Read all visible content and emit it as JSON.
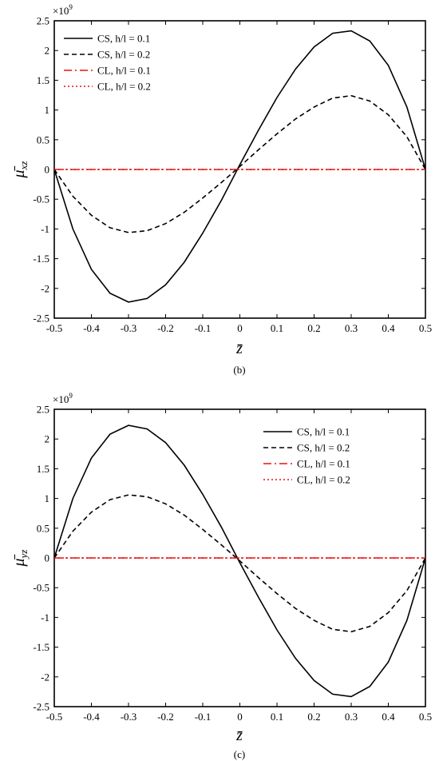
{
  "chart_data": [
    {
      "type": "line",
      "panel_label": "(b)",
      "ylabel": "μ̄",
      "ylabel_sub": "xz",
      "xlabel": "z̄",
      "exponent_base": "×10",
      "exponent_power": "9",
      "xlim": [
        -0.5,
        0.5
      ],
      "ylim": [
        -2.5,
        2.5
      ],
      "xticks": [
        "-0.5",
        "-0.4",
        "-0.3",
        "-0.2",
        "-0.1",
        "0",
        "0.1",
        "0.2",
        "0.3",
        "0.4",
        "0.5"
      ],
      "yticks": [
        "2.5",
        "2",
        "1.5",
        "1",
        "0.5",
        "0",
        "-0.5",
        "-1",
        "-1.5",
        "-2",
        "-2.5"
      ],
      "legend_position": "top-left",
      "series": [
        {
          "name": "CS, h/l = 0.1",
          "color": "#000000",
          "dash": "solid",
          "x": [
            -0.5,
            -0.45,
            -0.4,
            -0.35,
            -0.3,
            -0.25,
            -0.2,
            -0.15,
            -0.1,
            -0.05,
            0,
            0.05,
            0.1,
            0.15,
            0.2,
            0.25,
            0.3,
            0.35,
            0.4,
            0.45,
            0.5
          ],
          "y": [
            0,
            -1.0,
            -1.68,
            -2.08,
            -2.23,
            -2.17,
            -1.94,
            -1.56,
            -1.07,
            -0.52,
            0.08,
            0.66,
            1.21,
            1.69,
            2.06,
            2.29,
            2.33,
            2.16,
            1.75,
            1.05,
            0
          ]
        },
        {
          "name": "CS, h/l = 0.2",
          "color": "#000000",
          "dash": "dashed",
          "x": [
            -0.5,
            -0.45,
            -0.4,
            -0.35,
            -0.3,
            -0.25,
            -0.2,
            -0.15,
            -0.1,
            -0.05,
            0,
            0.05,
            0.1,
            0.15,
            0.2,
            0.25,
            0.3,
            0.35,
            0.4,
            0.45,
            0.5
          ],
          "y": [
            0,
            -0.45,
            -0.77,
            -0.98,
            -1.06,
            -1.03,
            -0.91,
            -0.72,
            -0.48,
            -0.22,
            0.05,
            0.33,
            0.6,
            0.85,
            1.05,
            1.2,
            1.24,
            1.15,
            0.92,
            0.55,
            0
          ]
        },
        {
          "name": "CL, h/l = 0.1",
          "color": "#e8110f",
          "dash": "dashdot",
          "x": [
            -0.5,
            0.5
          ],
          "y": [
            0,
            0
          ]
        },
        {
          "name": "CL, h/l = 0.2",
          "color": "#e8110f",
          "dash": "dotted",
          "x": [
            -0.5,
            0.5
          ],
          "y": [
            0,
            0
          ]
        }
      ]
    },
    {
      "type": "line",
      "panel_label": "(c)",
      "ylabel": "μ̄",
      "ylabel_sub": "yz",
      "xlabel": "z̄",
      "exponent_base": "×10",
      "exponent_power": "9",
      "xlim": [
        -0.5,
        0.5
      ],
      "ylim": [
        -2.5,
        2.5
      ],
      "xticks": [
        "-0.5",
        "-0.4",
        "-0.3",
        "-0.2",
        "-0.1",
        "0",
        "0.1",
        "0.2",
        "0.3",
        "0.4",
        "0.5"
      ],
      "yticks": [
        "2.5",
        "2",
        "1.5",
        "1",
        "0.5",
        "0",
        "-0.5",
        "-1",
        "-1.5",
        "-2",
        "-2.5"
      ],
      "legend_position": "top-right",
      "series": [
        {
          "name": "CS, h/l = 0.1",
          "color": "#000000",
          "dash": "solid",
          "x": [
            -0.5,
            -0.45,
            -0.4,
            -0.35,
            -0.3,
            -0.25,
            -0.2,
            -0.15,
            -0.1,
            -0.05,
            0,
            0.05,
            0.1,
            0.15,
            0.2,
            0.25,
            0.3,
            0.35,
            0.4,
            0.45,
            0.5
          ],
          "y": [
            0,
            1.0,
            1.68,
            2.08,
            2.23,
            2.17,
            1.94,
            1.56,
            1.07,
            0.52,
            -0.08,
            -0.66,
            -1.21,
            -1.69,
            -2.06,
            -2.29,
            -2.33,
            -2.16,
            -1.75,
            -1.05,
            0
          ]
        },
        {
          "name": "CS, h/l = 0.2",
          "color": "#000000",
          "dash": "dashed",
          "x": [
            -0.5,
            -0.45,
            -0.4,
            -0.35,
            -0.3,
            -0.25,
            -0.2,
            -0.15,
            -0.1,
            -0.05,
            0,
            0.05,
            0.1,
            0.15,
            0.2,
            0.25,
            0.3,
            0.35,
            0.4,
            0.45,
            0.5
          ],
          "y": [
            0,
            0.45,
            0.77,
            0.98,
            1.06,
            1.03,
            0.91,
            0.72,
            0.48,
            0.22,
            -0.05,
            -0.33,
            -0.6,
            -0.85,
            -1.05,
            -1.2,
            -1.24,
            -1.15,
            -0.92,
            -0.55,
            0
          ]
        },
        {
          "name": "CL, h/l = 0.1",
          "color": "#e8110f",
          "dash": "dashdot",
          "x": [
            -0.5,
            0.5
          ],
          "y": [
            0,
            0
          ]
        },
        {
          "name": "CL, h/l = 0.2",
          "color": "#e8110f",
          "dash": "dotted",
          "x": [
            -0.5,
            0.5
          ],
          "y": [
            0,
            0
          ]
        }
      ]
    }
  ]
}
